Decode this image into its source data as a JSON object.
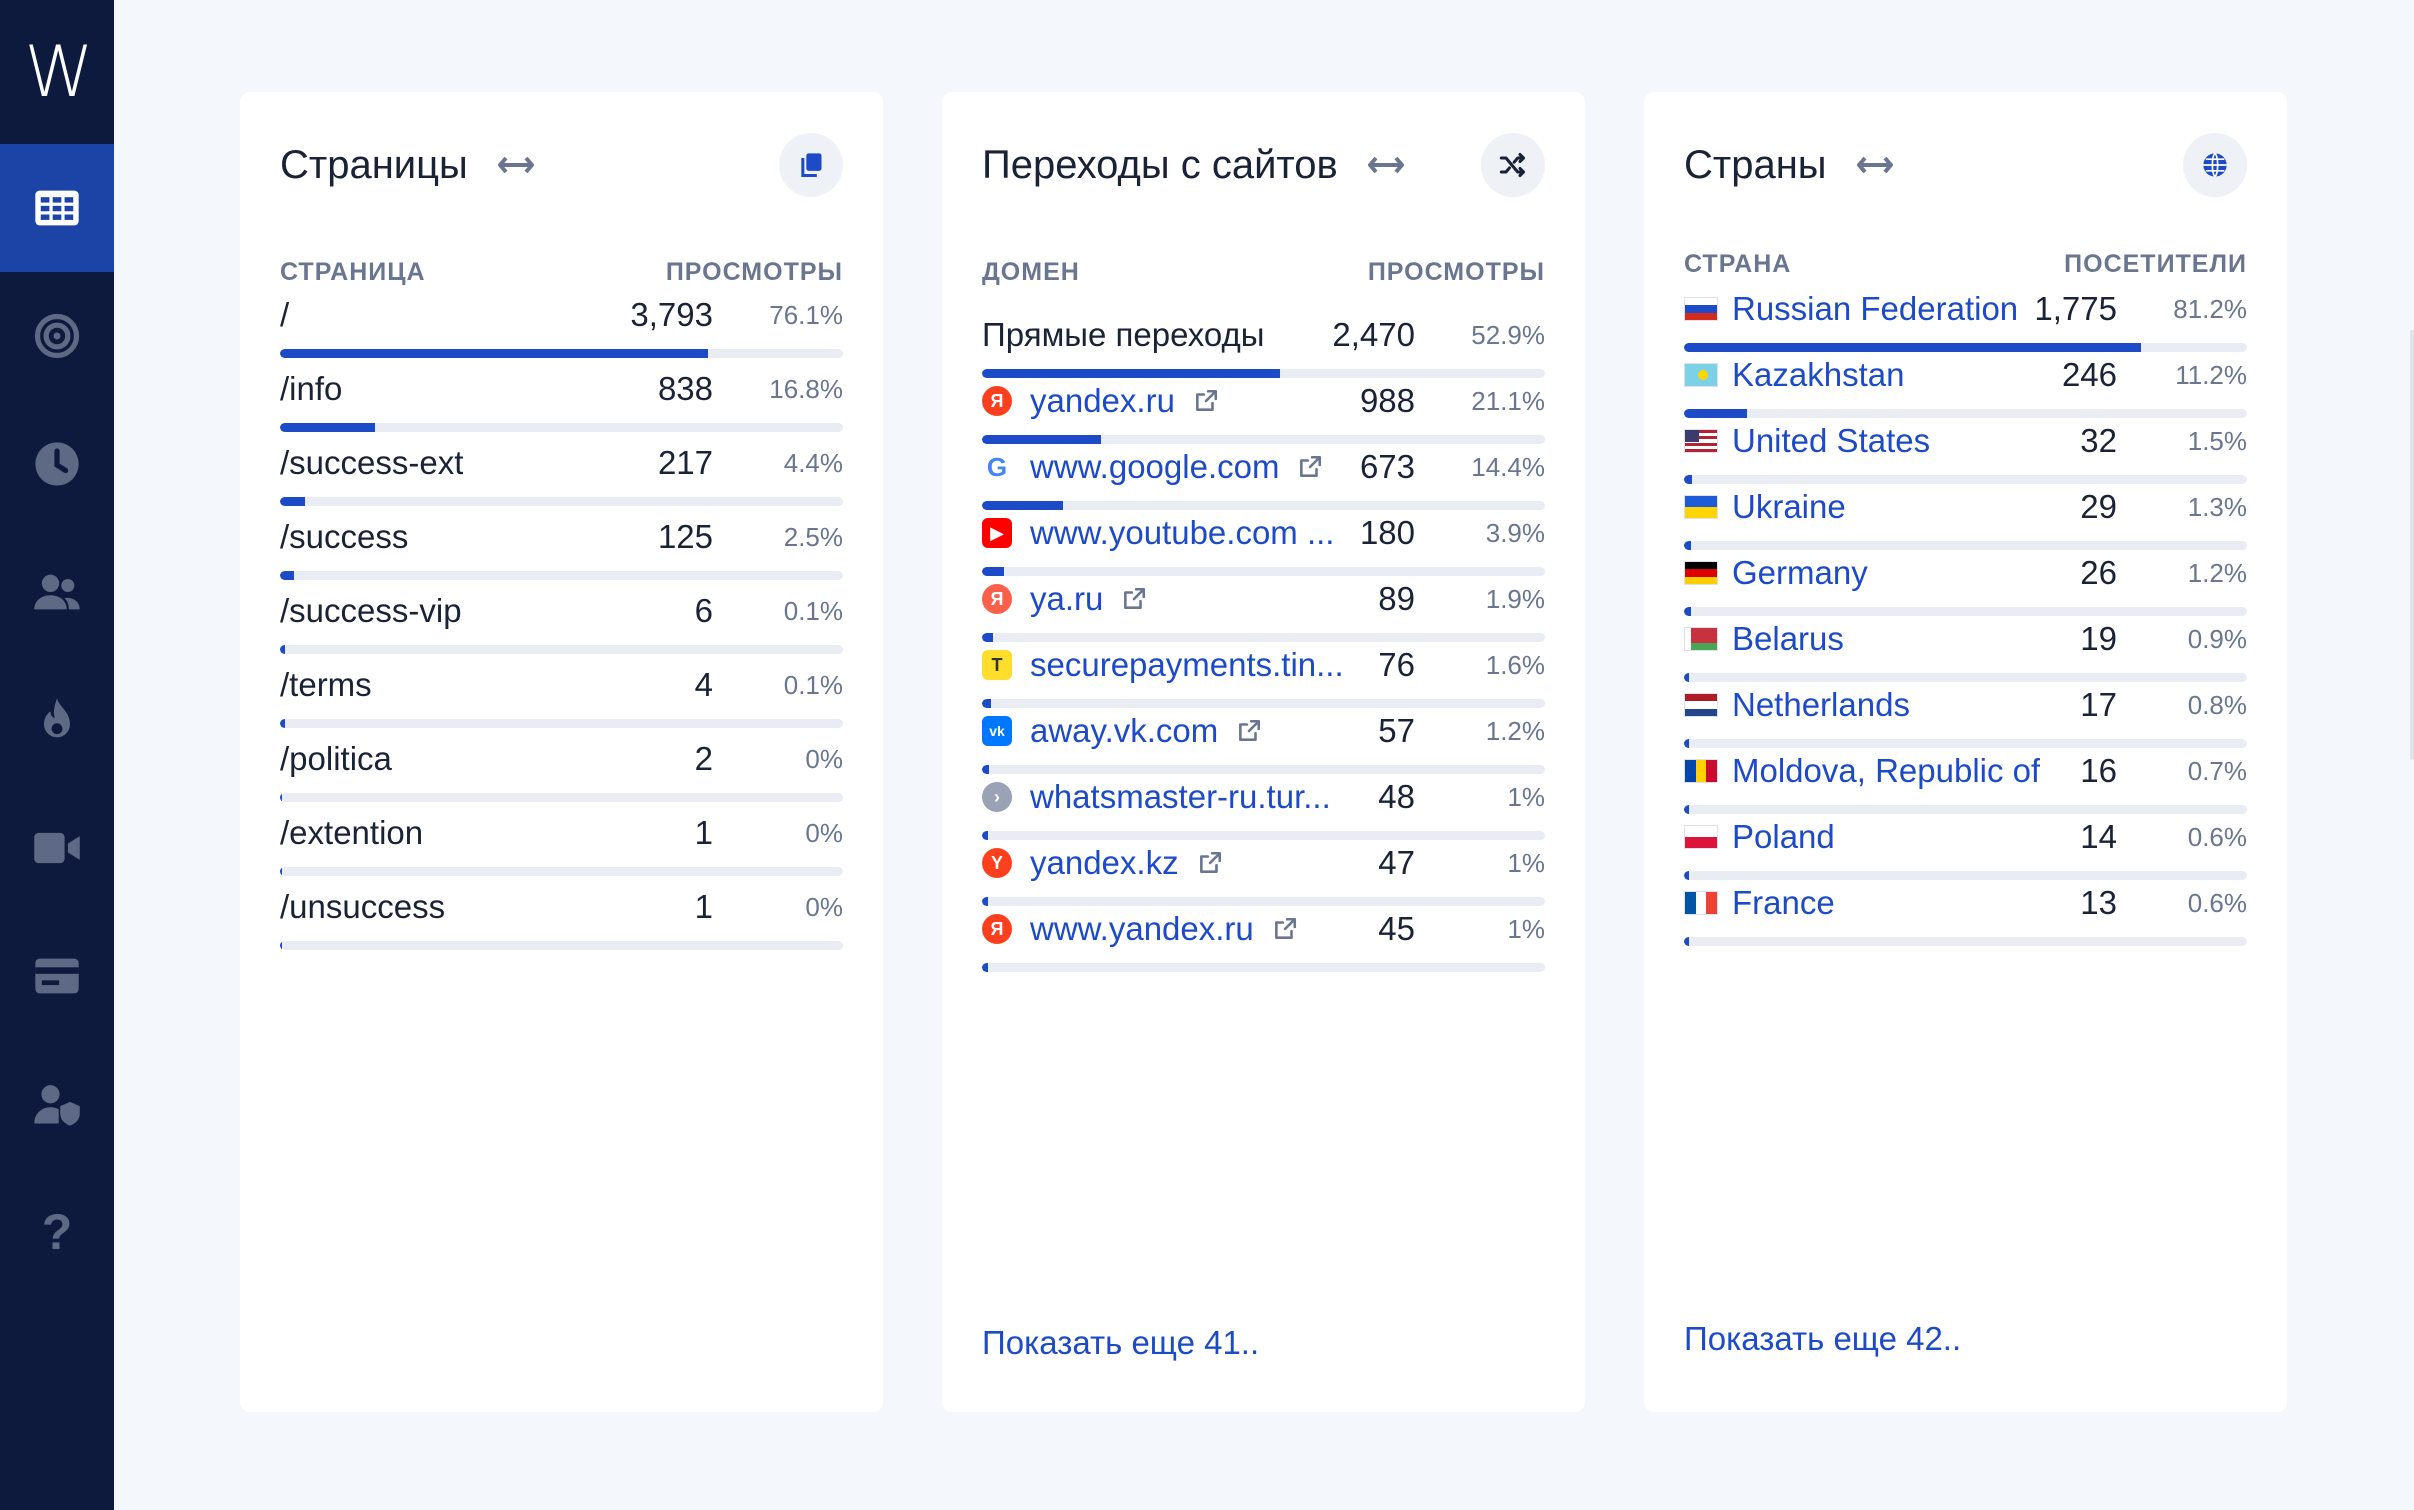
{
  "sidebar": {
    "logo": "W",
    "items": [
      {
        "name": "dashboard-icon"
      },
      {
        "name": "target-icon"
      },
      {
        "name": "clock-icon"
      },
      {
        "name": "users-icon"
      },
      {
        "name": "fire-icon"
      },
      {
        "name": "video-icon"
      },
      {
        "name": "card-icon"
      },
      {
        "name": "user-shield-icon"
      }
    ],
    "help": "?"
  },
  "pages": {
    "title": "Страницы",
    "col_left": "СТРАНИЦА",
    "col_right": "ПРОСМОТРЫ",
    "rows": [
      {
        "label": "/",
        "value": "3,793",
        "pct": "76.1%",
        "fill": 76.1
      },
      {
        "label": "/info",
        "value": "838",
        "pct": "16.8%",
        "fill": 16.8
      },
      {
        "label": "/success-ext",
        "value": "217",
        "pct": "4.4%",
        "fill": 4.4
      },
      {
        "label": "/success",
        "value": "125",
        "pct": "2.5%",
        "fill": 2.5
      },
      {
        "label": "/success-vip",
        "value": "6",
        "pct": "0.1%",
        "fill": 0.1
      },
      {
        "label": "/terms",
        "value": "4",
        "pct": "0.1%",
        "fill": 0.1
      },
      {
        "label": "/politica",
        "value": "2",
        "pct": "0%",
        "fill": 0
      },
      {
        "label": "/extention",
        "value": "1",
        "pct": "0%",
        "fill": 0
      },
      {
        "label": "/unsuccess",
        "value": "1",
        "pct": "0%",
        "fill": 0
      }
    ]
  },
  "referrers": {
    "title": "Переходы с сайтов",
    "col_left": "ДОМЕН",
    "col_right": "ПРОСМОТРЫ",
    "rows": [
      {
        "label": "Прямые переходы",
        "value": "2,470",
        "pct": "52.9%",
        "fill": 52.9,
        "icon": "",
        "link": false,
        "ext": false
      },
      {
        "label": "yandex.ru",
        "value": "988",
        "pct": "21.1%",
        "fill": 21.1,
        "icon": "yandex",
        "link": true,
        "ext": true
      },
      {
        "label": "www.google.com",
        "value": "673",
        "pct": "14.4%",
        "fill": 14.4,
        "icon": "google",
        "link": true,
        "ext": true
      },
      {
        "label": "www.youtube.com ...",
        "value": "180",
        "pct": "3.9%",
        "fill": 3.9,
        "icon": "youtube",
        "link": true,
        "ext": false
      },
      {
        "label": "ya.ru",
        "value": "89",
        "pct": "1.9%",
        "fill": 1.9,
        "icon": "ya",
        "link": true,
        "ext": true
      },
      {
        "label": "securepayments.tin...",
        "value": "76",
        "pct": "1.6%",
        "fill": 1.6,
        "icon": "tinkoff",
        "link": true,
        "ext": false
      },
      {
        "label": "away.vk.com",
        "value": "57",
        "pct": "1.2%",
        "fill": 1.2,
        "icon": "vk",
        "link": true,
        "ext": true
      },
      {
        "label": "whatsmaster-ru.tur...",
        "value": "48",
        "pct": "1%",
        "fill": 1,
        "icon": "generic",
        "link": true,
        "ext": false
      },
      {
        "label": "yandex.kz",
        "value": "47",
        "pct": "1%",
        "fill": 1,
        "icon": "yandex-y",
        "link": true,
        "ext": true
      },
      {
        "label": "www.yandex.ru",
        "value": "45",
        "pct": "1%",
        "fill": 1,
        "icon": "yandex",
        "link": true,
        "ext": true
      }
    ],
    "show_more": "Показать еще 41.."
  },
  "countries": {
    "title": "Страны",
    "col_left": "СТРАНА",
    "col_right": "ПОСЕТИТЕЛИ",
    "rows": [
      {
        "label": "Russian Federation",
        "value": "1,775",
        "pct": "81.2%",
        "fill": 81.2,
        "flag": "ru"
      },
      {
        "label": "Kazakhstan",
        "value": "246",
        "pct": "11.2%",
        "fill": 11.2,
        "flag": "kz"
      },
      {
        "label": "United States",
        "value": "32",
        "pct": "1.5%",
        "fill": 1.5,
        "flag": "us"
      },
      {
        "label": "Ukraine",
        "value": "29",
        "pct": "1.3%",
        "fill": 1.3,
        "flag": "ua"
      },
      {
        "label": "Germany",
        "value": "26",
        "pct": "1.2%",
        "fill": 1.2,
        "flag": "de"
      },
      {
        "label": "Belarus",
        "value": "19",
        "pct": "0.9%",
        "fill": 0.9,
        "flag": "by"
      },
      {
        "label": "Netherlands",
        "value": "17",
        "pct": "0.8%",
        "fill": 0.8,
        "flag": "nl"
      },
      {
        "label": "Moldova, Republic of",
        "value": "16",
        "pct": "0.7%",
        "fill": 0.7,
        "flag": "md"
      },
      {
        "label": "Poland",
        "value": "14",
        "pct": "0.6%",
        "fill": 0.6,
        "flag": "pl"
      },
      {
        "label": "France",
        "value": "13",
        "pct": "0.6%",
        "fill": 0.6,
        "flag": "fr"
      }
    ],
    "show_more": "Показать еще 42.."
  },
  "colors": {
    "sidebar": "#0e1a3d",
    "sidebar_active": "#1c44a6",
    "accent": "#1d4bc7",
    "background": "#f4f7fc"
  }
}
